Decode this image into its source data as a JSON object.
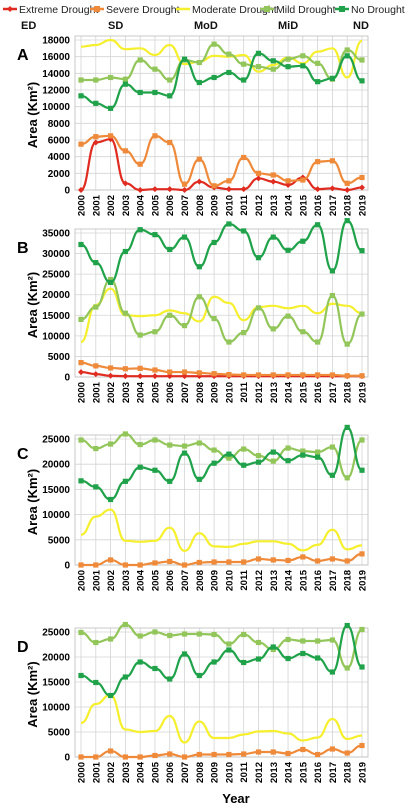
{
  "figure": {
    "xlabel": "Year",
    "ylabel": "Area (Km²)"
  },
  "legend": [
    {
      "name": "Extreme Drought",
      "abbr": "ED",
      "color": "#e02b20",
      "marker": "diamond"
    },
    {
      "name": "Severe Drought",
      "abbr": "SD",
      "color": "#ee8a3a",
      "marker": "square"
    },
    {
      "name": "Moderate Drought",
      "abbr": "MoD",
      "color": "#f5ef2e",
      "marker": "none"
    },
    {
      "name": "Mild Drought",
      "abbr": "MiD",
      "color": "#93c65a",
      "marker": "square"
    },
    {
      "name": "No Drought",
      "abbr": "ND",
      "color": "#1fa24a",
      "marker": "square"
    }
  ],
  "chart_data": [
    {
      "panel": "A",
      "type": "line",
      "x": [
        2000,
        2001,
        2002,
        2003,
        2004,
        2005,
        2006,
        2007,
        2008,
        2009,
        2010,
        2011,
        2012,
        2013,
        2014,
        2015,
        2016,
        2017,
        2018,
        2019
      ],
      "ylim": [
        0,
        18000
      ],
      "yticks": [
        0,
        2000,
        4000,
        6000,
        8000,
        10000,
        12000,
        14000,
        16000,
        18000
      ],
      "series": [
        {
          "name": "Extreme Drought",
          "values": [
            0,
            5700,
            6100,
            800,
            0,
            100,
            100,
            0,
            1000,
            300,
            100,
            100,
            1400,
            1000,
            600,
            1500,
            100,
            200,
            0,
            300
          ]
        },
        {
          "name": "Severe Drought",
          "values": [
            5500,
            6400,
            6500,
            4700,
            3100,
            6500,
            5700,
            700,
            3700,
            500,
            1100,
            3900,
            2000,
            1800,
            1100,
            1200,
            3400,
            3500,
            800,
            1500
          ]
        },
        {
          "name": "Moderate Drought",
          "values": [
            17200,
            17400,
            18000,
            16900,
            17000,
            16200,
            17400,
            15100,
            15400,
            16100,
            16000,
            16200,
            14200,
            15000,
            15900,
            15200,
            16600,
            17000,
            13500,
            17900
          ]
        },
        {
          "name": "Mild Drought",
          "values": [
            13200,
            13200,
            13500,
            13300,
            15600,
            14500,
            13200,
            15600,
            15300,
            17500,
            16300,
            15100,
            14800,
            14500,
            15700,
            16100,
            15200,
            13300,
            16800,
            15600
          ]
        },
        {
          "name": "No Drought",
          "values": [
            11300,
            10400,
            9800,
            12700,
            11700,
            11700,
            11300,
            15700,
            12900,
            13500,
            14100,
            13200,
            16400,
            15500,
            14800,
            14900,
            13000,
            13400,
            16100,
            13100
          ]
        }
      ]
    },
    {
      "panel": "B",
      "type": "line",
      "x": [
        2000,
        2001,
        2002,
        2003,
        2004,
        2005,
        2006,
        2007,
        2008,
        2009,
        2010,
        2011,
        2012,
        2013,
        2014,
        2015,
        2016,
        2017,
        2018,
        2019
      ],
      "ylim": [
        0,
        35000
      ],
      "yticks": [
        0,
        5000,
        10000,
        15000,
        20000,
        25000,
        30000,
        35000
      ],
      "series": [
        {
          "name": "Extreme Drought",
          "values": [
            1200,
            700,
            300,
            200,
            200,
            200,
            200,
            200,
            200,
            200,
            200,
            200,
            200,
            200,
            200,
            200,
            200,
            200,
            200,
            200
          ]
        },
        {
          "name": "Severe Drought",
          "values": [
            3500,
            2700,
            2200,
            2000,
            2100,
            1700,
            1200,
            1200,
            1000,
            800,
            600,
            500,
            500,
            500,
            500,
            500,
            500,
            500,
            300,
            300
          ]
        },
        {
          "name": "Moderate Drought",
          "values": [
            8500,
            17500,
            21500,
            15000,
            14800,
            15000,
            16200,
            15500,
            13500,
            19500,
            18000,
            13800,
            17000,
            17300,
            16700,
            17300,
            15500,
            17800,
            17300,
            15500
          ]
        },
        {
          "name": "Mild Drought",
          "values": [
            14000,
            17000,
            23700,
            15500,
            10200,
            11000,
            15000,
            12500,
            19500,
            14200,
            8500,
            10800,
            16800,
            11700,
            14800,
            11000,
            8500,
            19800,
            8000,
            15300
          ]
        },
        {
          "name": "No Drought",
          "values": [
            32200,
            27800,
            23000,
            30500,
            35800,
            34600,
            31000,
            34000,
            26800,
            32700,
            37200,
            35500,
            29000,
            34000,
            30800,
            33000,
            37000,
            25800,
            38000,
            30700
          ]
        }
      ]
    },
    {
      "panel": "C",
      "type": "line",
      "x": [
        2000,
        2001,
        2002,
        2003,
        2004,
        2005,
        2006,
        2007,
        2008,
        2009,
        2010,
        2011,
        2012,
        2013,
        2014,
        2015,
        2016,
        2017,
        2018,
        2019
      ],
      "ylim": [
        0,
        25000
      ],
      "yticks": [
        0,
        5000,
        10000,
        15000,
        20000,
        25000
      ],
      "series": [
        {
          "name": "Severe Drought",
          "values": [
            0,
            0,
            1000,
            0,
            0,
            400,
            700,
            0,
            500,
            600,
            600,
            600,
            1200,
            1000,
            900,
            1600,
            800,
            1200,
            800,
            2200
          ]
        },
        {
          "name": "Moderate Drought",
          "values": [
            6000,
            9600,
            11000,
            4800,
            4600,
            4800,
            7400,
            2800,
            6300,
            3700,
            3600,
            4200,
            4700,
            4700,
            4200,
            2900,
            4000,
            7000,
            3100,
            3900
          ]
        },
        {
          "name": "Mild Drought",
          "values": [
            24800,
            23100,
            24000,
            26000,
            23900,
            24800,
            23800,
            23600,
            24200,
            22800,
            21200,
            23000,
            21700,
            20600,
            23200,
            22600,
            22400,
            23400,
            17300,
            24800
          ]
        },
        {
          "name": "No Drought",
          "values": [
            16700,
            15500,
            13000,
            16600,
            19400,
            18800,
            16600,
            22200,
            17000,
            20200,
            22000,
            19800,
            20400,
            22400,
            20700,
            21800,
            21400,
            17800,
            27300,
            18800
          ]
        }
      ]
    },
    {
      "panel": "D",
      "type": "line",
      "x": [
        2000,
        2001,
        2002,
        2003,
        2004,
        2005,
        2006,
        2007,
        2008,
        2009,
        2010,
        2011,
        2012,
        2013,
        2014,
        2015,
        2016,
        2017,
        2018,
        2019
      ],
      "ylim": [
        0,
        25000
      ],
      "yticks": [
        0,
        5000,
        10000,
        15000,
        20000,
        25000
      ],
      "series": [
        {
          "name": "Severe Drought",
          "values": [
            0,
            0,
            1200,
            0,
            0,
            300,
            600,
            0,
            500,
            500,
            500,
            600,
            1000,
            1000,
            700,
            1500,
            500,
            1600,
            800,
            2300
          ]
        },
        {
          "name": "Moderate Drought",
          "values": [
            6800,
            10600,
            12400,
            5500,
            5000,
            5200,
            8200,
            2900,
            7100,
            3800,
            3800,
            4500,
            5100,
            5200,
            4700,
            3300,
            3900,
            7600,
            3600,
            4300
          ]
        },
        {
          "name": "Mild Drought",
          "values": [
            24900,
            22900,
            23600,
            26500,
            24200,
            25000,
            24300,
            24600,
            24600,
            24500,
            22600,
            24500,
            22900,
            21500,
            23500,
            23200,
            23200,
            23400,
            17800,
            25500
          ]
        },
        {
          "name": "No Drought",
          "values": [
            16300,
            14900,
            12300,
            16000,
            19000,
            17700,
            15600,
            20600,
            16300,
            19000,
            21400,
            18900,
            19600,
            22000,
            19700,
            20700,
            19800,
            17000,
            26300,
            18000
          ]
        }
      ]
    }
  ]
}
